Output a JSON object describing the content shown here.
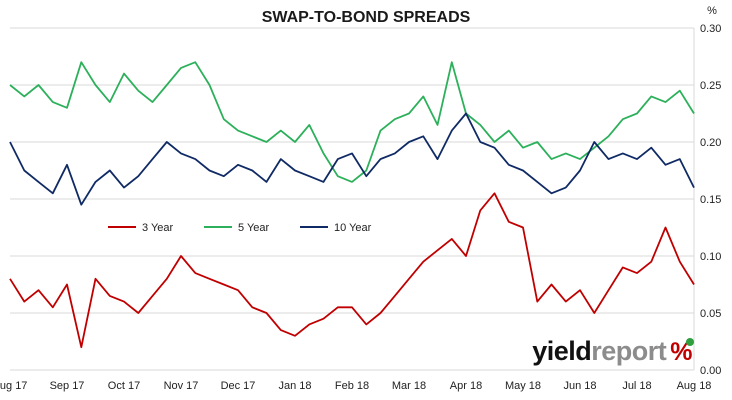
{
  "chart_data": {
    "type": "line",
    "title": "SWAP-TO-BOND SPREADS",
    "unit_label": "%",
    "xlabel": "",
    "ylabel": "",
    "ylim": [
      0.0,
      0.3
    ],
    "y_ticks": [
      "0.00",
      "0.05",
      "0.10",
      "0.15",
      "0.20",
      "0.25",
      "0.30"
    ],
    "x_ticks": [
      "Aug 17",
      "Sep 17",
      "Oct 17",
      "Nov 17",
      "Dec 17",
      "Jan 18",
      "Feb 18",
      "Mar 18",
      "Apr 18",
      "May 18",
      "Jun 18",
      "Jul 18",
      "Aug 18"
    ],
    "grid": "horizontal",
    "legend_position": "middle-left",
    "series": [
      {
        "name": "3 Year",
        "color": "#c00000",
        "x": [
          0,
          0.25,
          0.5,
          0.75,
          1,
          1.25,
          1.5,
          1.75,
          2,
          2.25,
          2.5,
          2.75,
          3,
          3.25,
          3.5,
          3.75,
          4,
          4.25,
          4.5,
          4.75,
          5,
          5.25,
          5.5,
          5.75,
          6,
          6.25,
          6.5,
          6.75,
          7,
          7.25,
          7.5,
          7.75,
          8,
          8.25,
          8.5,
          8.75,
          9,
          9.25,
          9.5,
          9.75,
          10,
          10.25,
          10.5,
          10.75,
          11,
          11.25,
          11.5,
          11.75,
          12
        ],
        "y": [
          0.08,
          0.06,
          0.07,
          0.055,
          0.075,
          0.02,
          0.08,
          0.065,
          0.06,
          0.05,
          0.065,
          0.08,
          0.1,
          0.085,
          0.08,
          0.075,
          0.07,
          0.055,
          0.05,
          0.035,
          0.03,
          0.04,
          0.045,
          0.055,
          0.055,
          0.04,
          0.05,
          0.065,
          0.08,
          0.095,
          0.105,
          0.115,
          0.1,
          0.14,
          0.155,
          0.13,
          0.125,
          0.06,
          0.075,
          0.06,
          0.07,
          0.05,
          0.07,
          0.09,
          0.085,
          0.095,
          0.125,
          0.095,
          0.075
        ]
      },
      {
        "name": "5 Year",
        "color": "#2db05b",
        "x": [
          0,
          0.25,
          0.5,
          0.75,
          1,
          1.25,
          1.5,
          1.75,
          2,
          2.25,
          2.5,
          2.75,
          3,
          3.25,
          3.5,
          3.75,
          4,
          4.25,
          4.5,
          4.75,
          5,
          5.25,
          5.5,
          5.75,
          6,
          6.25,
          6.5,
          6.75,
          7,
          7.25,
          7.5,
          7.75,
          8,
          8.25,
          8.5,
          8.75,
          9,
          9.25,
          9.5,
          9.75,
          10,
          10.25,
          10.5,
          10.75,
          11,
          11.25,
          11.5,
          11.75,
          12
        ],
        "y": [
          0.25,
          0.24,
          0.25,
          0.235,
          0.23,
          0.27,
          0.25,
          0.235,
          0.26,
          0.245,
          0.235,
          0.25,
          0.265,
          0.27,
          0.25,
          0.22,
          0.21,
          0.205,
          0.2,
          0.21,
          0.2,
          0.215,
          0.19,
          0.17,
          0.165,
          0.175,
          0.21,
          0.22,
          0.225,
          0.24,
          0.215,
          0.27,
          0.225,
          0.215,
          0.2,
          0.21,
          0.195,
          0.2,
          0.185,
          0.19,
          0.185,
          0.195,
          0.205,
          0.22,
          0.225,
          0.24,
          0.235,
          0.245,
          0.225
        ]
      },
      {
        "name": "10 Year",
        "color": "#0f2a64",
        "x": [
          0,
          0.25,
          0.5,
          0.75,
          1,
          1.25,
          1.5,
          1.75,
          2,
          2.25,
          2.5,
          2.75,
          3,
          3.25,
          3.5,
          3.75,
          4,
          4.25,
          4.5,
          4.75,
          5,
          5.25,
          5.5,
          5.75,
          6,
          6.25,
          6.5,
          6.75,
          7,
          7.25,
          7.5,
          7.75,
          8,
          8.25,
          8.5,
          8.75,
          9,
          9.25,
          9.5,
          9.75,
          10,
          10.25,
          10.5,
          10.75,
          11,
          11.25,
          11.5,
          11.75,
          12
        ],
        "y": [
          0.2,
          0.175,
          0.165,
          0.155,
          0.18,
          0.145,
          0.165,
          0.175,
          0.16,
          0.17,
          0.185,
          0.2,
          0.19,
          0.185,
          0.175,
          0.17,
          0.18,
          0.175,
          0.165,
          0.185,
          0.175,
          0.17,
          0.165,
          0.185,
          0.19,
          0.17,
          0.185,
          0.19,
          0.2,
          0.205,
          0.185,
          0.21,
          0.225,
          0.2,
          0.195,
          0.18,
          0.175,
          0.165,
          0.155,
          0.16,
          0.175,
          0.2,
          0.185,
          0.19,
          0.185,
          0.195,
          0.18,
          0.185,
          0.16
        ]
      }
    ]
  },
  "watermark": {
    "part1": "yield",
    "part2": "report",
    "symbol": "%"
  }
}
